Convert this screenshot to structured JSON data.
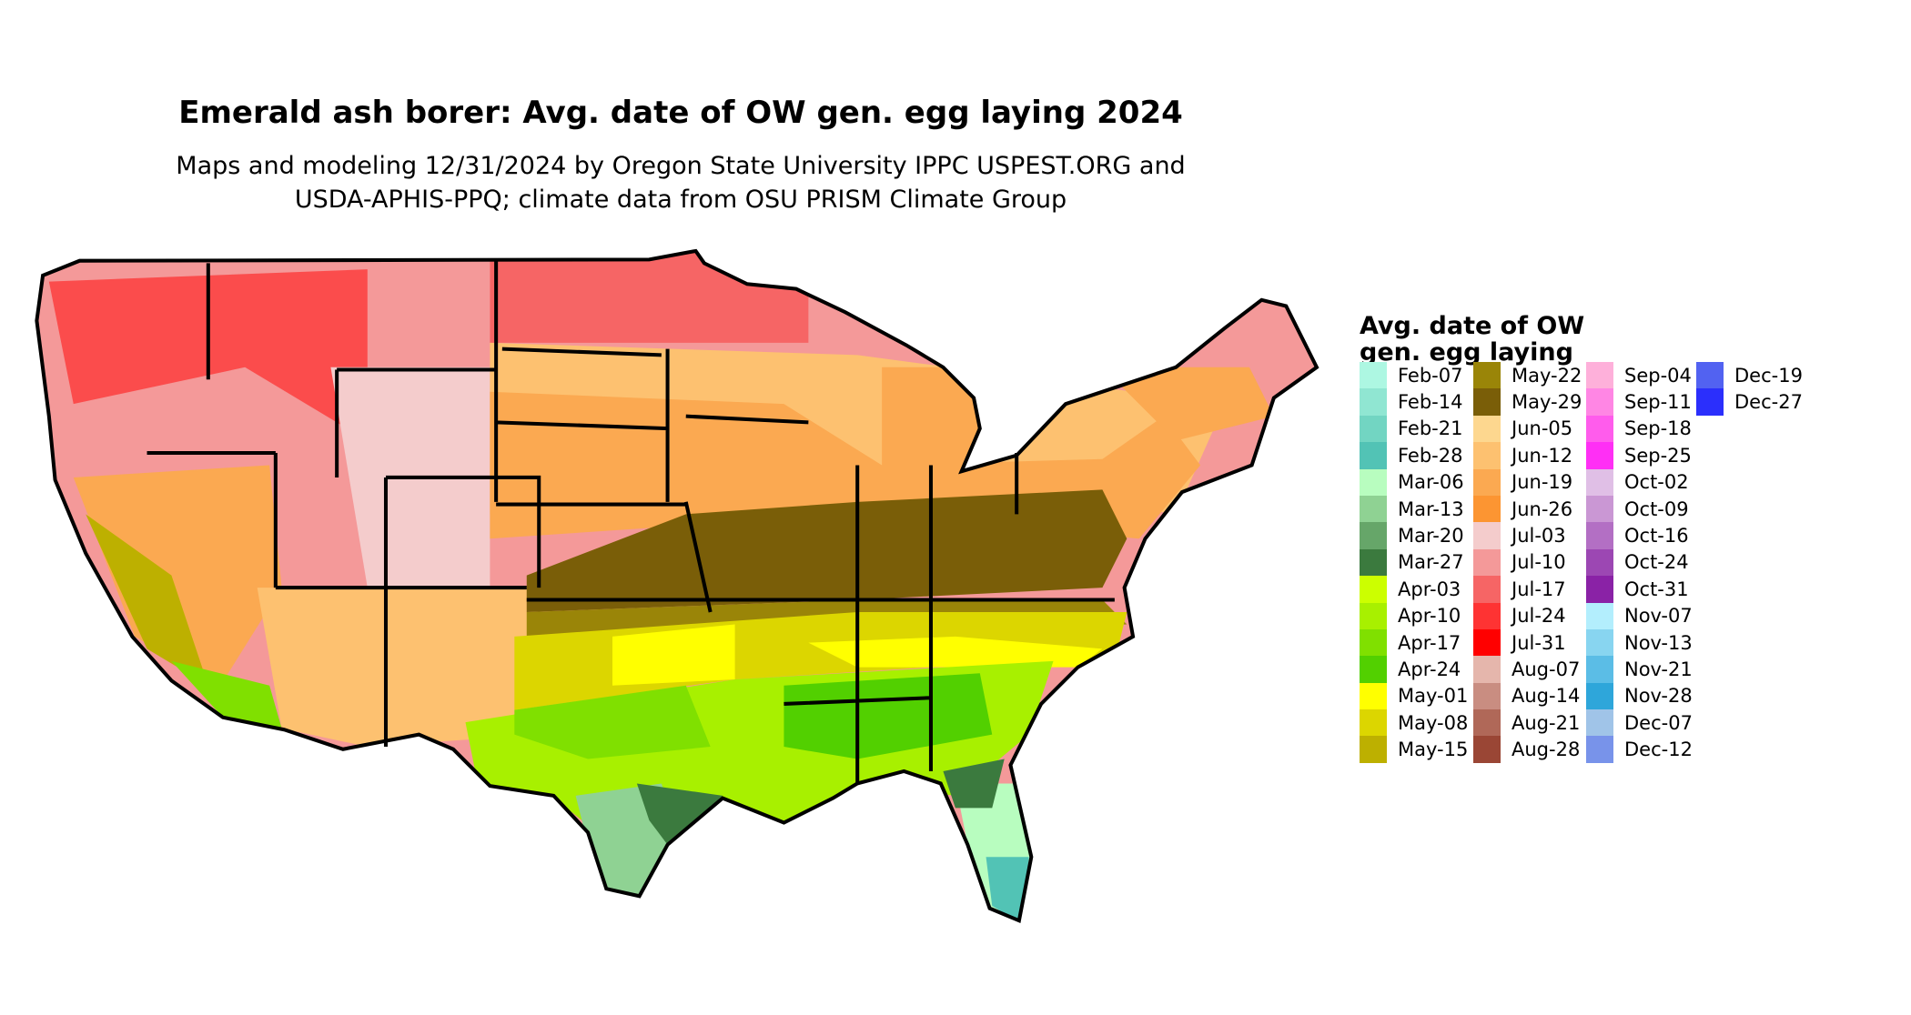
{
  "title": "Emerald ash borer: Avg. date of OW gen. egg laying 2024",
  "subtitle_line1": "Maps and modeling 12/31/2024 by Oregon State University IPPC USPEST.ORG and",
  "subtitle_line2": "USDA-APHIS-PPQ; climate data from OSU PRISM Climate Group",
  "legend": {
    "title_line1": "Avg. date of OW",
    "title_line2": "gen. egg laying",
    "columns": [
      [
        {
          "label": "Feb-07",
          "color": "#adf7e2"
        },
        {
          "label": "Feb-14",
          "color": "#90e6d2"
        },
        {
          "label": "Feb-21",
          "color": "#72d5c2"
        },
        {
          "label": "Feb-28",
          "color": "#52c3b5"
        },
        {
          "label": "Mar-06",
          "color": "#b8fdbf"
        },
        {
          "label": "Mar-13",
          "color": "#8fd293"
        },
        {
          "label": "Mar-20",
          "color": "#66a669"
        },
        {
          "label": "Mar-27",
          "color": "#3b7a3e"
        },
        {
          "label": "Apr-03",
          "color": "#ccff00"
        },
        {
          "label": "Apr-10",
          "color": "#a8f000"
        },
        {
          "label": "Apr-17",
          "color": "#80e000"
        },
        {
          "label": "Apr-24",
          "color": "#52d000"
        },
        {
          "label": "May-01",
          "color": "#ffff00"
        },
        {
          "label": "May-08",
          "color": "#dcd600"
        },
        {
          "label": "May-15",
          "color": "#bdb000"
        }
      ],
      [
        {
          "label": "May-22",
          "color": "#9a8508"
        },
        {
          "label": "May-29",
          "color": "#7a5e08"
        },
        {
          "label": "Jun-05",
          "color": "#fdd78f"
        },
        {
          "label": "Jun-12",
          "color": "#fdc170"
        },
        {
          "label": "Jun-19",
          "color": "#fba951"
        },
        {
          "label": "Jun-26",
          "color": "#fc9532"
        },
        {
          "label": "Jul-03",
          "color": "#f4cccc"
        },
        {
          "label": "Jul-10",
          "color": "#f49999"
        },
        {
          "label": "Jul-17",
          "color": "#f66565"
        },
        {
          "label": "Jul-24",
          "color": "#fe3333"
        },
        {
          "label": "Jul-31",
          "color": "#ff0000"
        },
        {
          "label": "Aug-07",
          "color": "#e5b6ac"
        },
        {
          "label": "Aug-14",
          "color": "#c98d81"
        },
        {
          "label": "Aug-21",
          "color": "#b06858"
        },
        {
          "label": "Aug-28",
          "color": "#9a4635"
        }
      ],
      [
        {
          "label": "Sep-04",
          "color": "#feb0da"
        },
        {
          "label": "Sep-11",
          "color": "#ff86e4"
        },
        {
          "label": "Sep-18",
          "color": "#ff5cec"
        },
        {
          "label": "Sep-25",
          "color": "#ff2ff5"
        },
        {
          "label": "Oct-02",
          "color": "#e0bfe6"
        },
        {
          "label": "Oct-09",
          "color": "#ca97d4"
        },
        {
          "label": "Oct-16",
          "color": "#b36fc4"
        },
        {
          "label": "Oct-24",
          "color": "#9c47b3"
        },
        {
          "label": "Oct-31",
          "color": "#8a22a6"
        },
        {
          "label": "Nov-07",
          "color": "#b3eefd"
        },
        {
          "label": "Nov-13",
          "color": "#88d5f0"
        },
        {
          "label": "Nov-21",
          "color": "#5bbde6"
        },
        {
          "label": "Nov-28",
          "color": "#2ea6da"
        },
        {
          "label": "Dec-07",
          "color": "#a0c4e8"
        },
        {
          "label": "Dec-12",
          "color": "#7893ea"
        }
      ],
      [
        {
          "label": "Dec-19",
          "color": "#5262f1"
        },
        {
          "label": "Dec-27",
          "color": "#2b2ffc"
        }
      ]
    ]
  }
}
